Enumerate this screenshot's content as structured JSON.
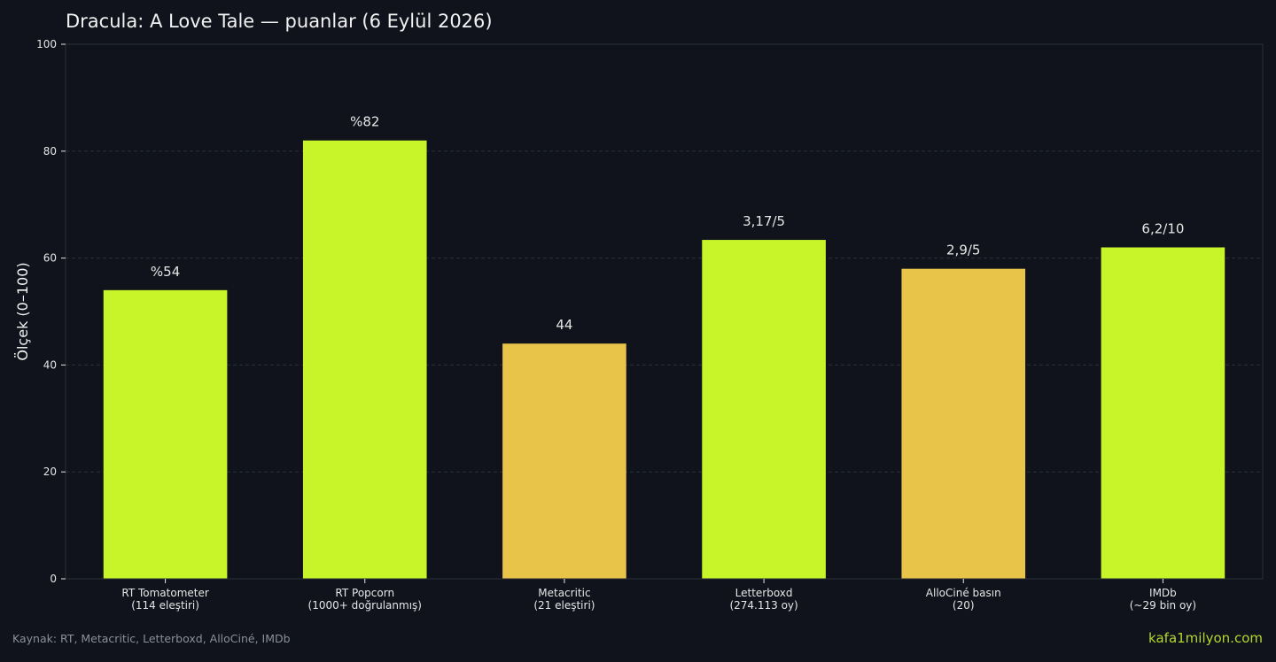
{
  "chart_data": {
    "type": "bar",
    "title": "Dracula: A Love Tale — puanlar (6 Eylül 2026)",
    "xlabel": "",
    "ylabel": "Ölçek (0–100)",
    "ylim": [
      0,
      100
    ],
    "yticks": [
      0,
      20,
      40,
      60,
      80,
      100
    ],
    "grid": true,
    "categories": [
      [
        "RT Tomatometer",
        "(114 eleştiri)"
      ],
      [
        "RT Popcorn",
        "(1000+ doğrulanmış)"
      ],
      [
        "Metacritic",
        "(21 eleştiri)"
      ],
      [
        "Letterboxd",
        "(274.113 oy)"
      ],
      [
        "AlloCiné basın",
        "(20)"
      ],
      [
        "IMDb",
        "(~29 bin oy)"
      ]
    ],
    "values": [
      54,
      82,
      44,
      63.4,
      58,
      62
    ],
    "data_labels": [
      "%54",
      "%82",
      "44",
      "3,17/5",
      "2,9/5",
      "6,2/10"
    ],
    "bar_colors": [
      "#c8f52a",
      "#c8f52a",
      "#e8c449",
      "#c8f52a",
      "#e8c449",
      "#c8f52a"
    ]
  },
  "footer": {
    "source": "Kaynak: RT, Metacritic, Letterboxd, AlloCiné, IMDb",
    "brand": "kafa1milyon.com"
  },
  "colors": {
    "background": "#10131b",
    "grid": "#2a2f3a",
    "axis_text": "#e6e6e6",
    "title": "#f2f2f2",
    "source_text": "#8a8f99",
    "brand": "#b5d630"
  }
}
